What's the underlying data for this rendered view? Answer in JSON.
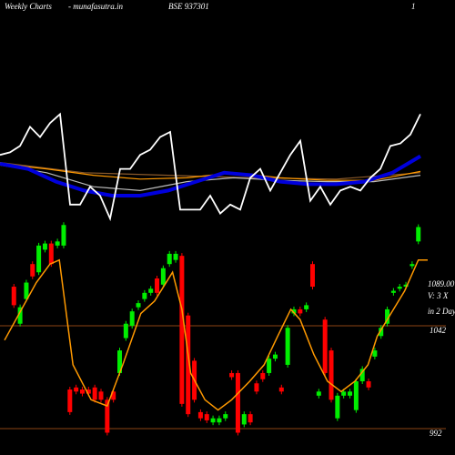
{
  "header": {
    "title": "Weekly Charts",
    "site": "- munafasutra.in",
    "symbol": "BSE 937301",
    "page": "1"
  },
  "chart_data": [
    {
      "type": "line",
      "ylim": [
        0,
        100
      ],
      "series": [
        {
          "color": "#8b5a2b",
          "values": [
            51,
            43,
            41,
            39,
            38,
            43
          ]
        },
        {
          "color": "#bbbbbb",
          "values": [
            49,
            43,
            32,
            29,
            36,
            39,
            37,
            36,
            36,
            41
          ]
        },
        {
          "color": "#ff9900",
          "values": [
            50,
            46,
            41,
            38,
            39,
            43,
            39,
            37,
            37,
            44
          ]
        },
        {
          "color": "#0000dd",
          "values": [
            50,
            46,
            36,
            29,
            25,
            25,
            29,
            36,
            43,
            41,
            36,
            34,
            34,
            36,
            43,
            56
          ]
        },
        {
          "color": "#ffffff",
          "values": [
            57,
            59,
            64,
            79,
            71,
            82,
            89,
            18,
            18,
            32,
            25,
            7,
            46,
            46,
            57,
            61,
            71,
            75,
            14,
            14,
            14,
            25,
            11,
            18,
            14,
            39,
            46,
            29,
            43,
            57,
            68,
            21,
            32,
            18,
            29,
            32,
            29,
            39,
            46,
            64,
            66,
            73,
            89
          ]
        }
      ]
    },
    {
      "type": "candlestick",
      "xlim": [
        -1.5,
        66.5
      ],
      "ylim": [
        988,
        1092
      ],
      "yticks": [
        1042,
        992
      ],
      "up_color": "#00ee00",
      "down_color": "#ff0000",
      "level_color": "#8b4513",
      "open": [
        1061,
        1043,
        1055,
        1072,
        1068,
        1079,
        1082,
        1081,
        1081,
        1011,
        1012,
        1011,
        1011,
        1012,
        1010,
        1006,
        1010,
        1019,
        1036,
        1042,
        1051,
        1055,
        1058,
        1065,
        1062,
        1072,
        1074,
        1076,
        1047,
        1025,
        1000,
        999,
        995,
        995,
        997,
        1019,
        1019,
        994,
        999,
        1014,
        1019,
        1019,
        1026,
        1012,
        1023,
        1048,
        1050,
        1050,
        1072,
        1008,
        1045,
        1030,
        997,
        1008,
        1008,
        1001,
        1015,
        1015,
        1027,
        1037,
        1043,
        1058,
        1060,
        1061,
        1071,
        1083
      ],
      "close": [
        1052,
        1051,
        1063,
        1066,
        1081,
        1082,
        1072,
        1083,
        1091,
        1000,
        1010,
        1009,
        1009,
        1006,
        1006,
        990,
        1006,
        1030,
        1043,
        1049,
        1053,
        1058,
        1060,
        1058,
        1070,
        1077,
        1077,
        1004,
        999,
        1006,
        997,
        996,
        997,
        997,
        999,
        1017,
        990,
        999,
        995,
        1010,
        1016,
        1026,
        1028,
        1010,
        1041,
        1050,
        1048,
        1052,
        1061,
        1010,
        1019,
        1006,
        1008,
        1010,
        1010,
        1015,
        1021,
        1012,
        1030,
        1041,
        1050,
        1059,
        1061,
        1062,
        1072,
        1090
      ],
      "line": {
        "color": "#ff9900",
        "x": [
          -1.5,
          3.6,
          5.8,
          7.3,
          9.5,
          12.4,
          15,
          17.5,
          20.4,
          22.6,
          25.5,
          27,
          28.4,
          30.7,
          32.8,
          35,
          37.9,
          40.2,
          42.4,
          44.5,
          46,
          48.2,
          50.4,
          52.6,
          54.8,
          56.9,
          58.4,
          60.6,
          62.8,
          65,
          66.5
        ],
        "values": [
          1035,
          1063,
          1072,
          1074,
          1023,
          1006,
          1003,
          1023,
          1048,
          1054,
          1068,
          1050,
          1019,
          1006,
          1001,
          1006,
          1015,
          1023,
          1037,
          1050,
          1045,
          1028,
          1015,
          1010,
          1015,
          1023,
          1037,
          1048,
          1059,
          1074,
          1074
        ]
      },
      "annotations": [
        "1089.00",
        "V: 3 X",
        "in 2 Days"
      ]
    }
  ]
}
